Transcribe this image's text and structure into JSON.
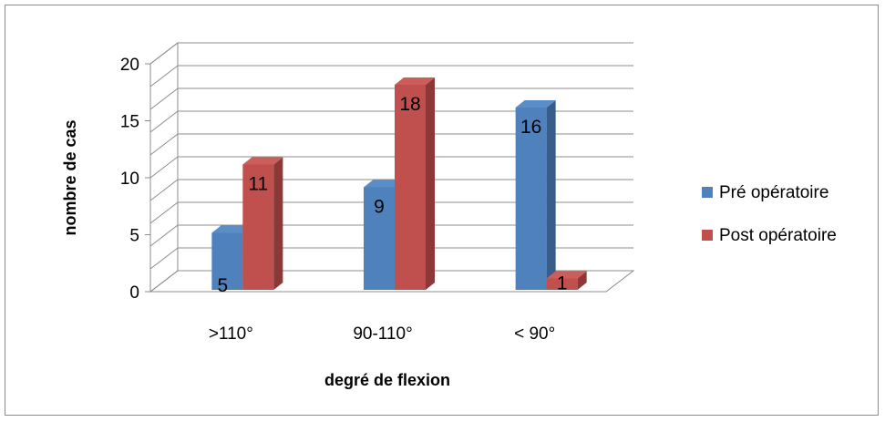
{
  "chart_data": {
    "type": "bar",
    "categories": [
      ">110°",
      "90-110°",
      "< 90°"
    ],
    "series": [
      {
        "name": "Pré opératoire",
        "values": [
          5,
          9,
          16
        ],
        "color": "#4F81BD",
        "side_color": "#385D8A",
        "top_color": "#5B8DC8"
      },
      {
        "name": "Post opératoire",
        "values": [
          11,
          18,
          1
        ],
        "color": "#C0504D",
        "side_color": "#8C3836",
        "top_color": "#CB5D5A"
      }
    ],
    "xlabel": "degré de flexion",
    "ylabel": "nombre de cas",
    "ylim": [
      0,
      20
    ],
    "yticks": [
      "0",
      "5",
      "10",
      "15",
      "20"
    ],
    "grid": true,
    "legend_position": "right",
    "style": "3d-clustered-column"
  }
}
